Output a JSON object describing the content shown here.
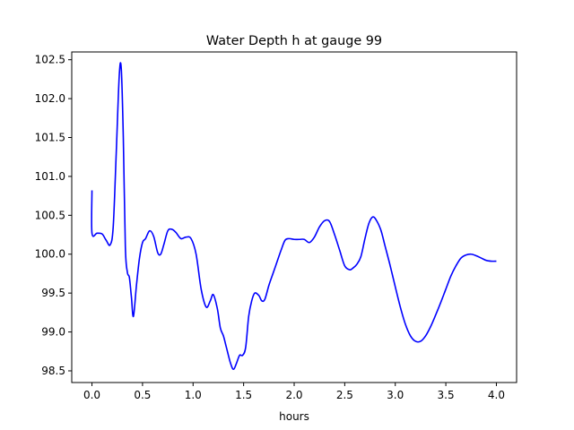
{
  "chart_data": {
    "type": "line",
    "title": "Water Depth h at gauge 99",
    "xlabel": "hours",
    "ylabel": "",
    "xlim": [
      -0.2,
      4.2
    ],
    "ylim": [
      98.35,
      102.6
    ],
    "xticks": [
      0.0,
      0.5,
      1.0,
      1.5,
      2.0,
      2.5,
      3.0,
      3.5,
      4.0
    ],
    "xtick_labels": [
      "0.0",
      "0.5",
      "1.0",
      "1.5",
      "2.0",
      "2.5",
      "3.0",
      "3.5",
      "4.0"
    ],
    "yticks": [
      98.5,
      99.0,
      99.5,
      100.0,
      100.5,
      101.0,
      101.5,
      102.0,
      102.5
    ],
    "ytick_labels": [
      "98.5",
      "99.0",
      "99.5",
      "100.0",
      "100.5",
      "101.0",
      "101.5",
      "102.0",
      "102.5"
    ],
    "grid": false,
    "series": [
      {
        "color": "#0000ff",
        "x": [
          0.0,
          0.0,
          0.05,
          0.1,
          0.14,
          0.18,
          0.21,
          0.24,
          0.27,
          0.29,
          0.31,
          0.33,
          0.35,
          0.37,
          0.39,
          0.41,
          0.44,
          0.47,
          0.5,
          0.53,
          0.57,
          0.61,
          0.65,
          0.68,
          0.71,
          0.75,
          0.79,
          0.83,
          0.88,
          0.93,
          0.98,
          1.03,
          1.08,
          1.13,
          1.17,
          1.2,
          1.24,
          1.27,
          1.3,
          1.33,
          1.37,
          1.4,
          1.43,
          1.46,
          1.49,
          1.52,
          1.55,
          1.58,
          1.61,
          1.65,
          1.68,
          1.71,
          1.75,
          1.79,
          1.83,
          1.87,
          1.91,
          1.95,
          2.0,
          2.05,
          2.1,
          2.15,
          2.2,
          2.25,
          2.3,
          2.35,
          2.4,
          2.45,
          2.5,
          2.55,
          2.58,
          2.62,
          2.66,
          2.7,
          2.74,
          2.78,
          2.82,
          2.86,
          2.9,
          2.95,
          3.0,
          3.05,
          3.1,
          3.15,
          3.2,
          3.25,
          3.3,
          3.35,
          3.4,
          3.45,
          3.5,
          3.55,
          3.6,
          3.65,
          3.7,
          3.75,
          3.8,
          3.85,
          3.9,
          3.95,
          4.0
        ],
        "y": [
          100.82,
          100.27,
          100.27,
          100.26,
          100.18,
          100.12,
          100.35,
          101.3,
          102.3,
          102.38,
          101.5,
          100.1,
          99.77,
          99.7,
          99.45,
          99.2,
          99.6,
          99.95,
          100.15,
          100.2,
          100.3,
          100.23,
          100.02,
          100.0,
          100.12,
          100.3,
          100.32,
          100.28,
          100.2,
          100.22,
          100.2,
          100.0,
          99.55,
          99.32,
          99.4,
          99.48,
          99.3,
          99.05,
          98.95,
          98.8,
          98.6,
          98.52,
          98.6,
          98.7,
          98.7,
          98.8,
          99.2,
          99.4,
          99.5,
          99.47,
          99.4,
          99.42,
          99.6,
          99.75,
          99.9,
          100.05,
          100.18,
          100.2,
          100.19,
          100.19,
          100.19,
          100.15,
          100.22,
          100.35,
          100.43,
          100.42,
          100.25,
          100.05,
          99.85,
          99.8,
          99.82,
          99.87,
          99.97,
          100.2,
          100.4,
          100.48,
          100.42,
          100.3,
          100.1,
          99.85,
          99.58,
          99.32,
          99.1,
          98.95,
          98.88,
          98.88,
          98.95,
          99.07,
          99.22,
          99.38,
          99.55,
          99.72,
          99.85,
          99.95,
          99.99,
          100.0,
          99.98,
          99.95,
          99.92,
          99.91,
          99.91
        ]
      }
    ]
  }
}
